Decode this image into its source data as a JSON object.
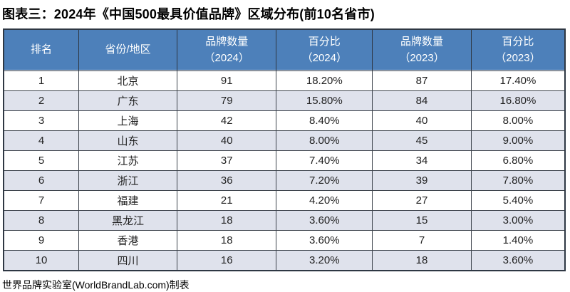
{
  "page": {
    "title": "图表三：2024年《中国500最具价值品牌》区域分布(前10名省市)",
    "source_note": "世界品牌实验室(WorldBrandLab.com)制表"
  },
  "colors": {
    "header_bg": "#4d80ba",
    "header_text": "#ffffff",
    "stripe_bg": "#dfe2ec",
    "grid_line": "#3c424b",
    "outer_border": "#2e3743",
    "body_text": "#222222"
  },
  "table": {
    "headers": [
      {
        "line1": "排名",
        "line2": ""
      },
      {
        "line1": "省份/地区",
        "line2": ""
      },
      {
        "line1": "品牌数量",
        "line2": "（2024）"
      },
      {
        "line1": "百分比",
        "line2": "（2024）"
      },
      {
        "line1": "品牌数量",
        "line2": "（2023）"
      },
      {
        "line1": "百分比",
        "line2": "（2023）"
      }
    ]
  },
  "chart_data": {
    "type": "table",
    "title": "图表三：2024年《中国500最具价值品牌》区域分布(前10名省市)",
    "source_note": "世界品牌实验室(WorldBrandLab.com)制表",
    "columns": [
      "排名",
      "省份/地区",
      "品牌数量（2024）",
      "百分比（2024）",
      "品牌数量（2023）",
      "百分比（2023）"
    ],
    "rows": [
      [
        "1",
        "北京",
        "91",
        "18.20%",
        "87",
        "17.40%"
      ],
      [
        "2",
        "广东",
        "79",
        "15.80%",
        "84",
        "16.80%"
      ],
      [
        "3",
        "上海",
        "42",
        "8.40%",
        "40",
        "8.00%"
      ],
      [
        "4",
        "山东",
        "40",
        "8.00%",
        "45",
        "9.00%"
      ],
      [
        "5",
        "江苏",
        "37",
        "7.40%",
        "34",
        "6.80%"
      ],
      [
        "6",
        "浙江",
        "36",
        "7.20%",
        "39",
        "7.80%"
      ],
      [
        "7",
        "福建",
        "21",
        "4.20%",
        "27",
        "5.40%"
      ],
      [
        "8",
        "黑龙江",
        "18",
        "3.60%",
        "15",
        "3.00%"
      ],
      [
        "9",
        "香港",
        "18",
        "3.60%",
        "7",
        "1.40%"
      ],
      [
        "10",
        "四川",
        "16",
        "3.20%",
        "18",
        "3.60%"
      ]
    ]
  }
}
